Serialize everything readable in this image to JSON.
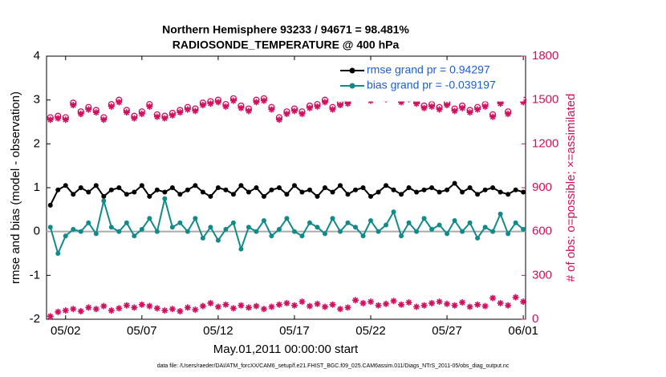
{
  "chart_data": {
    "type": "line",
    "title": "Northern Hemisphere 93233 / 94671 = 98.481%",
    "subtitle": "RADIOSONDE_TEMPERATURE @ 400 hPa",
    "xlabel": "May.01,2011 00:00:00 start",
    "ylabel": "rmse and bias (model - observation)",
    "y2label": "# of obs: o=possible; ×=assimilated",
    "footnote": "data file: /Users/raeder/DAI/ATM_forcXX/CAM6_setup/f.e21.FHIST_BGC.f09_025.CAM6assim.011/Diags_NTrS_2011-05/obs_diag_output.nc",
    "xlim": [
      0.75,
      32.15
    ],
    "xticks": [
      {
        "value": 2,
        "label": "05/02"
      },
      {
        "value": 7,
        "label": "05/07"
      },
      {
        "value": 12,
        "label": "05/12"
      },
      {
        "value": 17,
        "label": "05/17"
      },
      {
        "value": 22,
        "label": "05/22"
      },
      {
        "value": 27,
        "label": "05/27"
      },
      {
        "value": 32,
        "label": "06/01"
      }
    ],
    "ylim": [
      -2,
      4
    ],
    "yticks": [
      -2,
      -1,
      0,
      1,
      2,
      3,
      4
    ],
    "y2lim": [
      0,
      1800
    ],
    "y2ticks": [
      0,
      300,
      600,
      900,
      1200,
      1500,
      1800
    ],
    "legend": "upper right",
    "x": [
      1,
      1.5,
      2,
      2.5,
      3,
      3.5,
      4,
      4.5,
      5,
      5.5,
      6,
      6.5,
      7,
      7.5,
      8,
      8.5,
      9,
      9.5,
      10,
      10.5,
      11,
      11.5,
      12,
      12.5,
      13,
      13.5,
      14,
      14.5,
      15,
      15.5,
      16,
      16.5,
      17,
      17.5,
      18,
      18.5,
      19,
      19.5,
      20,
      20.5,
      21,
      21.5,
      22,
      22.5,
      23,
      23.5,
      24,
      24.5,
      25,
      25.5,
      26,
      26.5,
      27,
      27.5,
      28,
      28.5,
      29,
      29.5,
      30,
      30.5,
      31,
      31.5,
      32
    ],
    "series": [
      {
        "name": "rmse grand pr = 0.94297",
        "color": "#000000",
        "marker": "dot",
        "line": true,
        "values": [
          0.6,
          0.95,
          1.05,
          0.85,
          1.0,
          0.9,
          1.05,
          0.8,
          0.95,
          1.0,
          0.85,
          0.9,
          1.05,
          0.8,
          0.95,
          0.9,
          1.0,
          0.85,
          0.95,
          1.05,
          0.9,
          0.8,
          1.0,
          0.95,
          0.85,
          1.05,
          0.9,
          1.0,
          0.8,
          0.95,
          1.0,
          0.85,
          1.05,
          0.9,
          0.95,
          0.8,
          1.0,
          0.9,
          1.05,
          0.85,
          0.95,
          1.0,
          0.8,
          0.9,
          1.05,
          0.95,
          0.85,
          1.0,
          0.9,
          0.95,
          1.0,
          0.9,
          0.95,
          1.1,
          0.9,
          1.0,
          0.85,
          0.95,
          1.0,
          0.9,
          0.85,
          0.95,
          0.9
        ]
      },
      {
        "name": "bias grand pr = -0.039197",
        "color": "#138a8a",
        "marker": "dot",
        "line": true,
        "values": [
          0.1,
          -0.5,
          -0.1,
          0.05,
          0.0,
          0.2,
          -0.05,
          0.7,
          0.1,
          0.0,
          0.2,
          -0.1,
          0.05,
          0.3,
          0.0,
          0.75,
          0.1,
          0.2,
          0.0,
          0.3,
          -0.15,
          0.1,
          -0.2,
          0.05,
          0.2,
          -0.4,
          0.1,
          0.0,
          0.25,
          -0.1,
          0.05,
          0.3,
          0.0,
          -0.1,
          0.2,
          0.1,
          -0.05,
          0.3,
          0.0,
          0.2,
          0.1,
          -0.1,
          0.25,
          0.0,
          0.15,
          0.45,
          -0.1,
          0.2,
          0.0,
          0.3,
          0.05,
          0.15,
          -0.05,
          0.25,
          0.0,
          0.2,
          -0.15,
          0.1,
          0.0,
          0.4,
          -0.05,
          0.2,
          0.05
        ]
      },
      {
        "color": "#d0105e",
        "marker": "circle",
        "line": false,
        "axis": "y2",
        "values": [
          1380,
          1390,
          1380,
          1480,
          1420,
          1450,
          1430,
          1380,
          1470,
          1500,
          1430,
          1390,
          1420,
          1470,
          1400,
          1390,
          1410,
          1430,
          1450,
          1440,
          1480,
          1490,
          1500,
          1470,
          1510,
          1460,
          1440,
          1500,
          1510,
          1450,
          1380,
          1420,
          1440,
          1420,
          1460,
          1470,
          1500,
          1450,
          1480,
          1490,
          1530,
          1550,
          1510,
          1560,
          1520,
          1530,
          1500,
          1520,
          1490,
          1460,
          1470,
          1450,
          1480,
          1440,
          1460,
          1430,
          1450,
          1470,
          1400,
          1490,
          1420,
          1530,
          1500
        ]
      },
      {
        "color": "#d0105e",
        "marker": "star",
        "line": false,
        "axis": "y2",
        "values": [
          1365,
          1375,
          1365,
          1465,
          1405,
          1435,
          1415,
          1365,
          1455,
          1485,
          1415,
          1375,
          1405,
          1455,
          1385,
          1375,
          1395,
          1415,
          1435,
          1425,
          1465,
          1475,
          1485,
          1455,
          1495,
          1445,
          1425,
          1485,
          1495,
          1435,
          1365,
          1405,
          1425,
          1405,
          1445,
          1455,
          1485,
          1435,
          1465,
          1475,
          1515,
          1535,
          1495,
          1545,
          1505,
          1515,
          1485,
          1505,
          1475,
          1445,
          1455,
          1435,
          1465,
          1425,
          1445,
          1415,
          1435,
          1455,
          1385,
          1475,
          1405,
          1515,
          1485
        ]
      },
      {
        "color": "#d0105e",
        "marker": "star",
        "line": false,
        "axis": "y2",
        "values": [
          20,
          50,
          60,
          70,
          55,
          80,
          70,
          90,
          60,
          75,
          95,
          80,
          100,
          90,
          75,
          60,
          70,
          55,
          80,
          65,
          90,
          110,
          85,
          100,
          75,
          95,
          80,
          90,
          70,
          85,
          100,
          110,
          95,
          120,
          90,
          105,
          85,
          100,
          70,
          80,
          130,
          110,
          120,
          95,
          105,
          125,
          100,
          115,
          85,
          95,
          110,
          120,
          105,
          95,
          115,
          85,
          100,
          90,
          145,
          110,
          95,
          150,
          120
        ]
      }
    ]
  }
}
